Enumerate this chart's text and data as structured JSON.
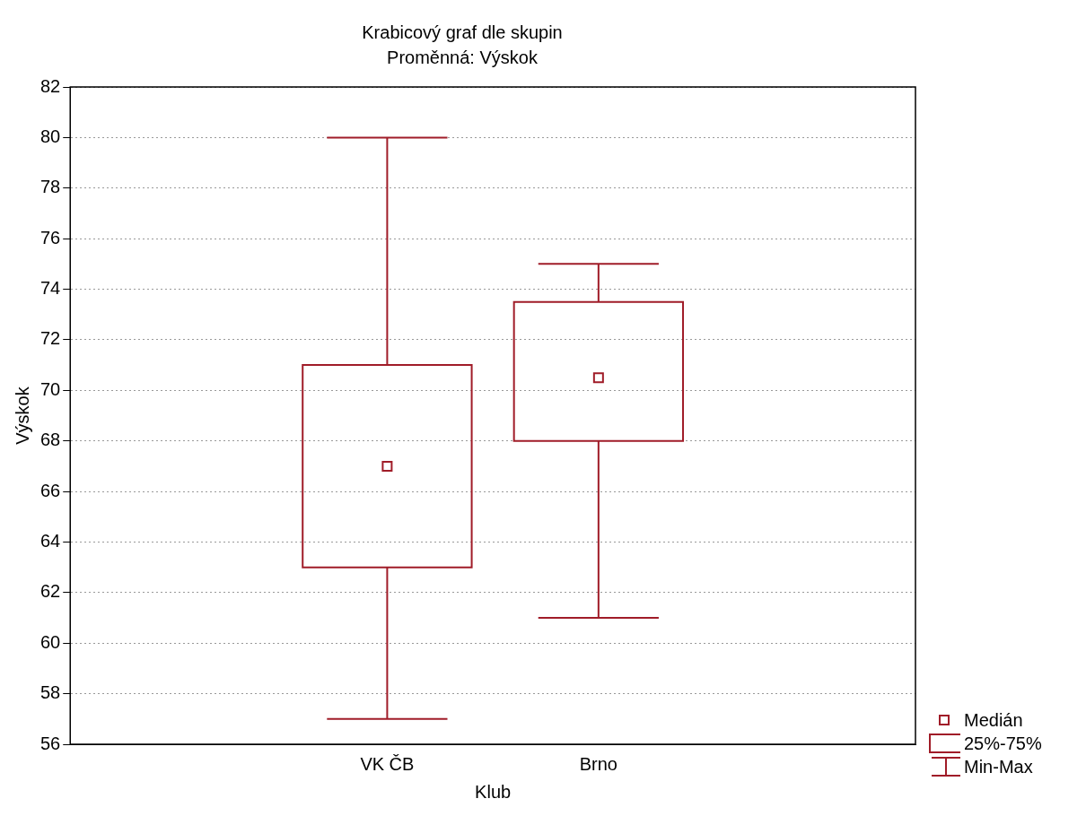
{
  "chart_data": {
    "type": "box",
    "title": "Krabicový graf dle skupin",
    "subtitle": "Proměnná: Výskok",
    "xlabel": "Klub",
    "ylabel": "Výskok",
    "categories": [
      "VK ČB",
      "Brno"
    ],
    "series": [
      {
        "color": "#a01c28",
        "boxes": [
          {
            "low": 57,
            "q1": 63,
            "median": 67,
            "q3": 71,
            "high": 80
          },
          {
            "low": 61,
            "q1": 68,
            "median": 70.5,
            "q3": 73.5,
            "high": 75
          }
        ]
      }
    ],
    "ylim": [
      56,
      82
    ],
    "yticks": [
      56,
      58,
      60,
      62,
      64,
      66,
      68,
      70,
      72,
      74,
      76,
      78,
      80,
      82
    ],
    "grid": "y",
    "annotations": [
      "Medián",
      "25%-75%",
      "Min-Max"
    ]
  }
}
